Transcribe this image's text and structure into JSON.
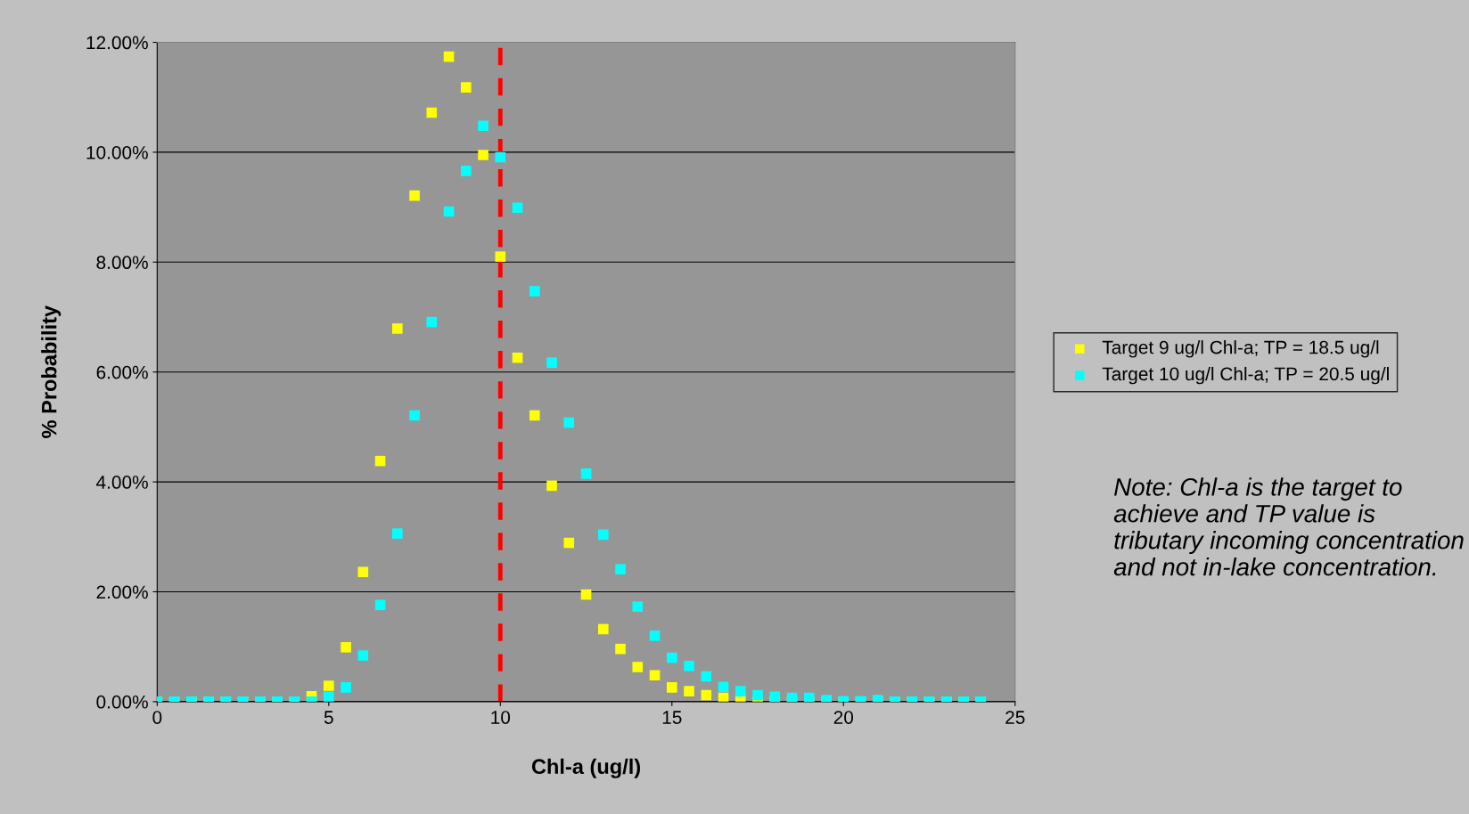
{
  "chart_data": {
    "type": "scatter",
    "xlabel": "Chl-a (ug/l)",
    "ylabel": "% Probability",
    "x": [
      0,
      0.5,
      1,
      1.5,
      2,
      2.5,
      3,
      3.5,
      4,
      4.5,
      5,
      5.5,
      6,
      6.5,
      7,
      7.5,
      8,
      8.5,
      9,
      9.5,
      10,
      10.5,
      11,
      11.5,
      12,
      12.5,
      13,
      13.5,
      14,
      14.5,
      15,
      15.5,
      16,
      16.5,
      17,
      17.5,
      18,
      18.5,
      19,
      19.5,
      20,
      20.5,
      21,
      21.5,
      22,
      22.5,
      23,
      23.5,
      24
    ],
    "series": [
      {
        "name": "Target 9 ug/l Chl-a; TP = 18.5 ug/l",
        "color": "#ffff00",
        "values": [
          0,
          0,
          0,
          0,
          0,
          0,
          0,
          0,
          0,
          0.1,
          0.29,
          0.99,
          2.36,
          4.38,
          6.79,
          9.21,
          10.72,
          11.74,
          11.18,
          9.95,
          8.1,
          6.26,
          5.21,
          3.93,
          2.89,
          1.95,
          1.32,
          0.96,
          0.63,
          0.48,
          0.26,
          0.19,
          0.12,
          0.07,
          0.03,
          0,
          0,
          0,
          0,
          0,
          0,
          0,
          0,
          0,
          0,
          0,
          0,
          0,
          0
        ]
      },
      {
        "name": "Target 10 ug/l Chl-a; TP = 20.5 ug/l",
        "color": "#00ffff",
        "values": [
          0,
          0,
          0,
          0,
          0,
          0,
          0,
          0,
          0,
          0,
          0.09,
          0.26,
          0.84,
          1.76,
          3.06,
          5.21,
          6.91,
          8.92,
          9.66,
          10.48,
          9.91,
          8.99,
          7.47,
          6.17,
          5.08,
          4.15,
          3.04,
          2.41,
          1.73,
          1.2,
          0.8,
          0.65,
          0.46,
          0.27,
          0.19,
          0.12,
          0.09,
          0.07,
          0.07,
          0.03,
          0.01,
          0.01,
          0.03,
          0,
          0,
          0,
          0,
          0,
          0
        ]
      }
    ],
    "xlim": [
      0,
      25
    ],
    "xticks": [
      0,
      5,
      10,
      15,
      20,
      25
    ],
    "ylim": [
      0,
      12
    ],
    "yticks": [
      {
        "value": 0,
        "label": "0.00%"
      },
      {
        "value": 2,
        "label": "2.00%"
      },
      {
        "value": 4,
        "label": "4.00%"
      },
      {
        "value": 6,
        "label": "6.00%"
      },
      {
        "value": 8,
        "label": "8.00%"
      },
      {
        "value": 10,
        "label": "10.00%"
      },
      {
        "value": 12,
        "label": "12.00%"
      }
    ],
    "ref_lines": [
      {
        "axis": "x",
        "value": 10,
        "color": "#ff0000",
        "line_style": "dashed"
      }
    ],
    "annotations": [
      "Note: Chl-a is the target to achieve and TP value is tributary incoming concentration and not in-lake concentration."
    ],
    "grid": "y",
    "legend": "right",
    "marker": "square"
  }
}
